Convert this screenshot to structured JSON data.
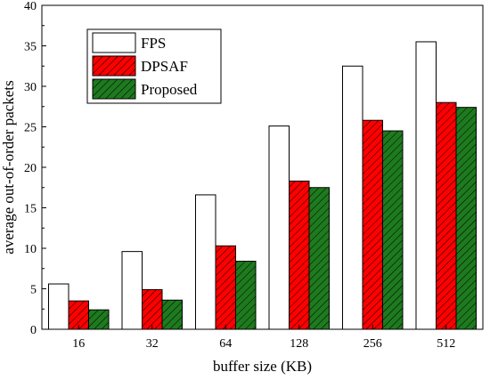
{
  "chart_data": {
    "type": "bar",
    "xlabel": "buffer size (KB)",
    "ylabel": "average out-of-order packets",
    "categories": [
      "16",
      "32",
      "64",
      "128",
      "256",
      "512"
    ],
    "ylim": [
      0,
      40
    ],
    "yticks": [
      0,
      5,
      10,
      15,
      20,
      25,
      30,
      35,
      40
    ],
    "series": [
      {
        "name": "FPS",
        "values": [
          5.6,
          9.6,
          16.6,
          25.1,
          32.5,
          35.5
        ],
        "fill": "#ffffff",
        "hatch": "none"
      },
      {
        "name": "DPSAF",
        "values": [
          3.5,
          4.9,
          10.3,
          18.3,
          25.8,
          28.0
        ],
        "fill": "#ff0000",
        "hatch": "diagonal"
      },
      {
        "name": "Proposed",
        "values": [
          2.4,
          3.6,
          8.4,
          17.5,
          24.5,
          27.4
        ],
        "fill": "#1e7a1e",
        "hatch": "diagonal"
      }
    ],
    "legend_position": "top-left",
    "grid": false
  }
}
